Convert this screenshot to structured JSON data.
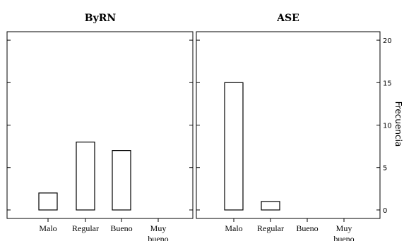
{
  "chart_data": [
    {
      "type": "bar",
      "title": "ByRN",
      "categories": [
        "Malo",
        "Regular",
        "Bueno",
        "Muy bueno"
      ],
      "values": [
        2,
        8,
        7,
        0
      ],
      "ylim": [
        -1,
        21
      ]
    },
    {
      "type": "bar",
      "title": "ASE",
      "categories": [
        "Malo",
        "Regular",
        "Bueno",
        "Muy bueno"
      ],
      "values": [
        15,
        1,
        0,
        0
      ],
      "ylim": [
        -1,
        21
      ]
    }
  ],
  "y_axis": {
    "label": "Frecuencia",
    "ticks": [
      0,
      5,
      10,
      15,
      20
    ]
  }
}
